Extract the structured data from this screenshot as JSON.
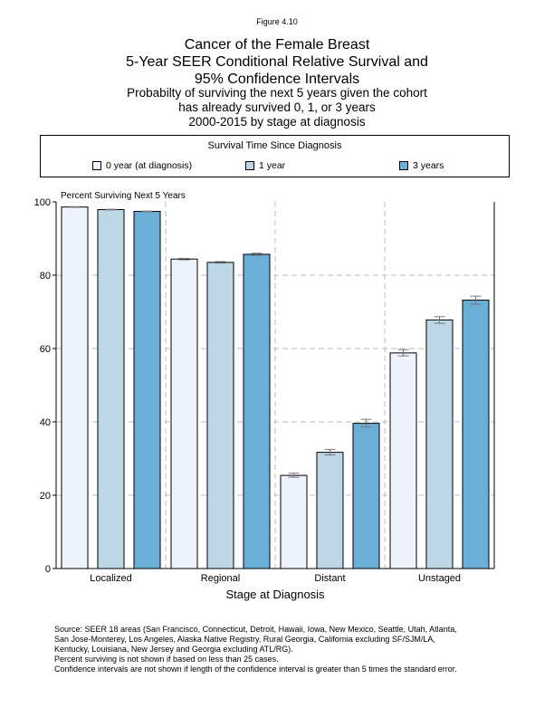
{
  "figure_label": "Figure 4.10",
  "title_lines": [
    "Cancer of the Female Breast",
    "5-Year SEER Conditional Relative Survival and",
    "95% Confidence Intervals"
  ],
  "subtitle_lines": [
    "Probabilty of surviving the next 5 years given the cohort",
    "has already survived 0, 1, or 3 years",
    "2000-2015 by stage at diagnosis"
  ],
  "legend": {
    "title": "Survival Time Since Diagnosis",
    "items": [
      {
        "label": "0 year (at diagnosis)",
        "color": "#eef3fd"
      },
      {
        "label": "1 year",
        "color": "#bdd7e7"
      },
      {
        "label": "3 years",
        "color": "#6baed6"
      }
    ]
  },
  "chart_data": {
    "type": "bar",
    "ylabel": "Percent Surviving Next 5 Years",
    "xlabel": "Stage at Diagnosis",
    "ylim": [
      0,
      100
    ],
    "yticks": [
      0,
      20,
      40,
      60,
      80,
      100
    ],
    "grid": true,
    "categories": [
      "Localized",
      "Regional",
      "Distant",
      "Unstaged"
    ],
    "series": [
      {
        "name": "0 year (at diagnosis)",
        "color": "#eef3fd",
        "values": [
          98.6,
          84.4,
          25.4,
          58.8
        ],
        "ci_low": [
          98.5,
          84.2,
          24.9,
          58.0
        ],
        "ci_high": [
          98.7,
          84.6,
          26.0,
          59.7
        ]
      },
      {
        "name": "1 year",
        "color": "#bdd7e7",
        "values": [
          97.9,
          83.5,
          31.7,
          67.8
        ],
        "ci_low": [
          97.8,
          83.3,
          31.0,
          66.9
        ],
        "ci_high": [
          98.0,
          83.7,
          32.5,
          68.7
        ]
      },
      {
        "name": "3 years",
        "color": "#6baed6",
        "values": [
          97.4,
          85.7,
          39.6,
          73.2
        ],
        "ci_low": [
          97.3,
          85.4,
          38.6,
          72.1
        ],
        "ci_high": [
          97.5,
          86.0,
          40.7,
          74.3
        ]
      }
    ]
  },
  "source_lines": [
    "Source:  SEER 18 areas (San Francisco, Connecticut, Detroit, Hawaii, Iowa, New Mexico, Seattle, Utah, Atlanta,",
    "San Jose-Monterey, Los Angeles, Alaska Native Registry, Rural Georgia, California excluding SF/SJM/LA,",
    "Kentucky, Louisiana, New Jersey and Georgia excluding ATL/RG).",
    "Percent surviving is not shown if based on less than 25 cases.",
    "Confidence intervals are not shown if length of the confidence interval is greater than 5 times the standard error."
  ]
}
